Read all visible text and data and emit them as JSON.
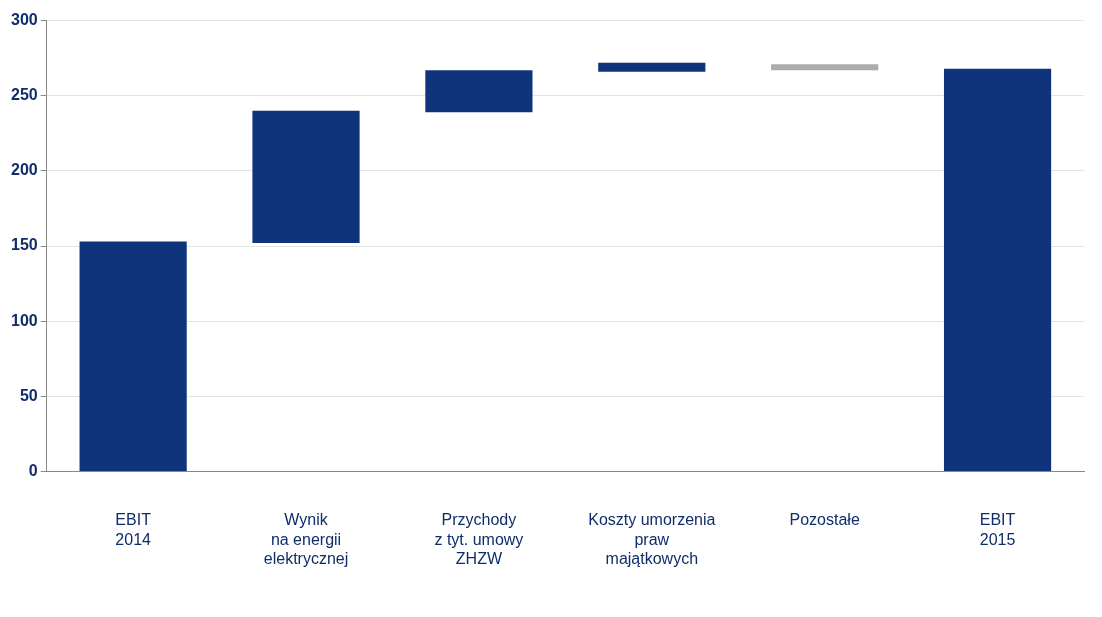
{
  "chart_data": {
    "type": "bar",
    "categories": [
      "EBIT\n2014",
      "Wynik\nna energii\nelektrycznej",
      "Przychody\nz tyt. umowy\nZHZW",
      "Koszty umorzenia\npraw\nmajątkowych",
      "Pozostałe",
      "EBIT\n2015"
    ],
    "values": [
      153,
      88,
      28,
      6,
      4,
      268
    ],
    "base": [
      0,
      152,
      239,
      266,
      267,
      0
    ],
    "colors": [
      "#0f347b",
      "#0f347b",
      "#0f347b",
      "#0f347b",
      "#acacac",
      "#0f347b"
    ],
    "ylim": [
      0,
      300
    ],
    "yticks": [
      0,
      50,
      100,
      150,
      200,
      250,
      300
    ],
    "grid": "y",
    "legend": false
  }
}
